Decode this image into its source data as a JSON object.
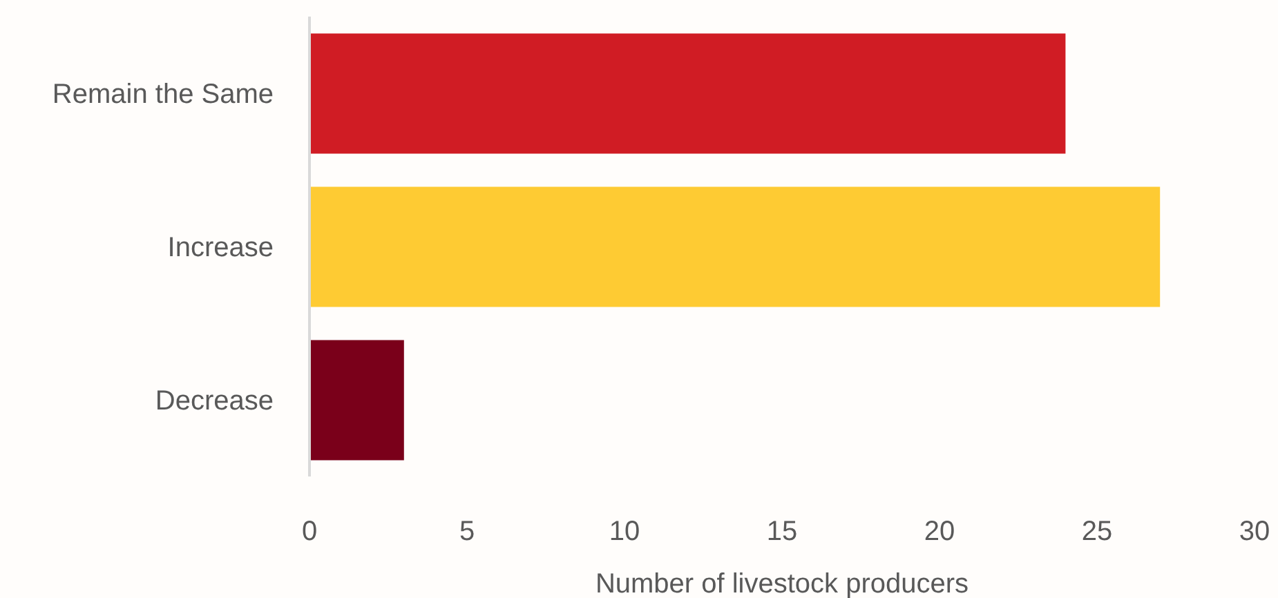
{
  "chart_data": {
    "type": "bar",
    "orientation": "horizontal",
    "categories": [
      "Remain the Same",
      "Increase",
      "Decrease"
    ],
    "values": [
      24,
      27,
      3
    ],
    "colors": [
      "#d01c24",
      "#fecb33",
      "#7a001a"
    ],
    "xlabel": "Number of livestock producers",
    "xlim": [
      0,
      30
    ],
    "xticks": [
      0,
      5,
      10,
      15,
      20,
      25,
      30
    ],
    "grid": false,
    "legend": false
  }
}
